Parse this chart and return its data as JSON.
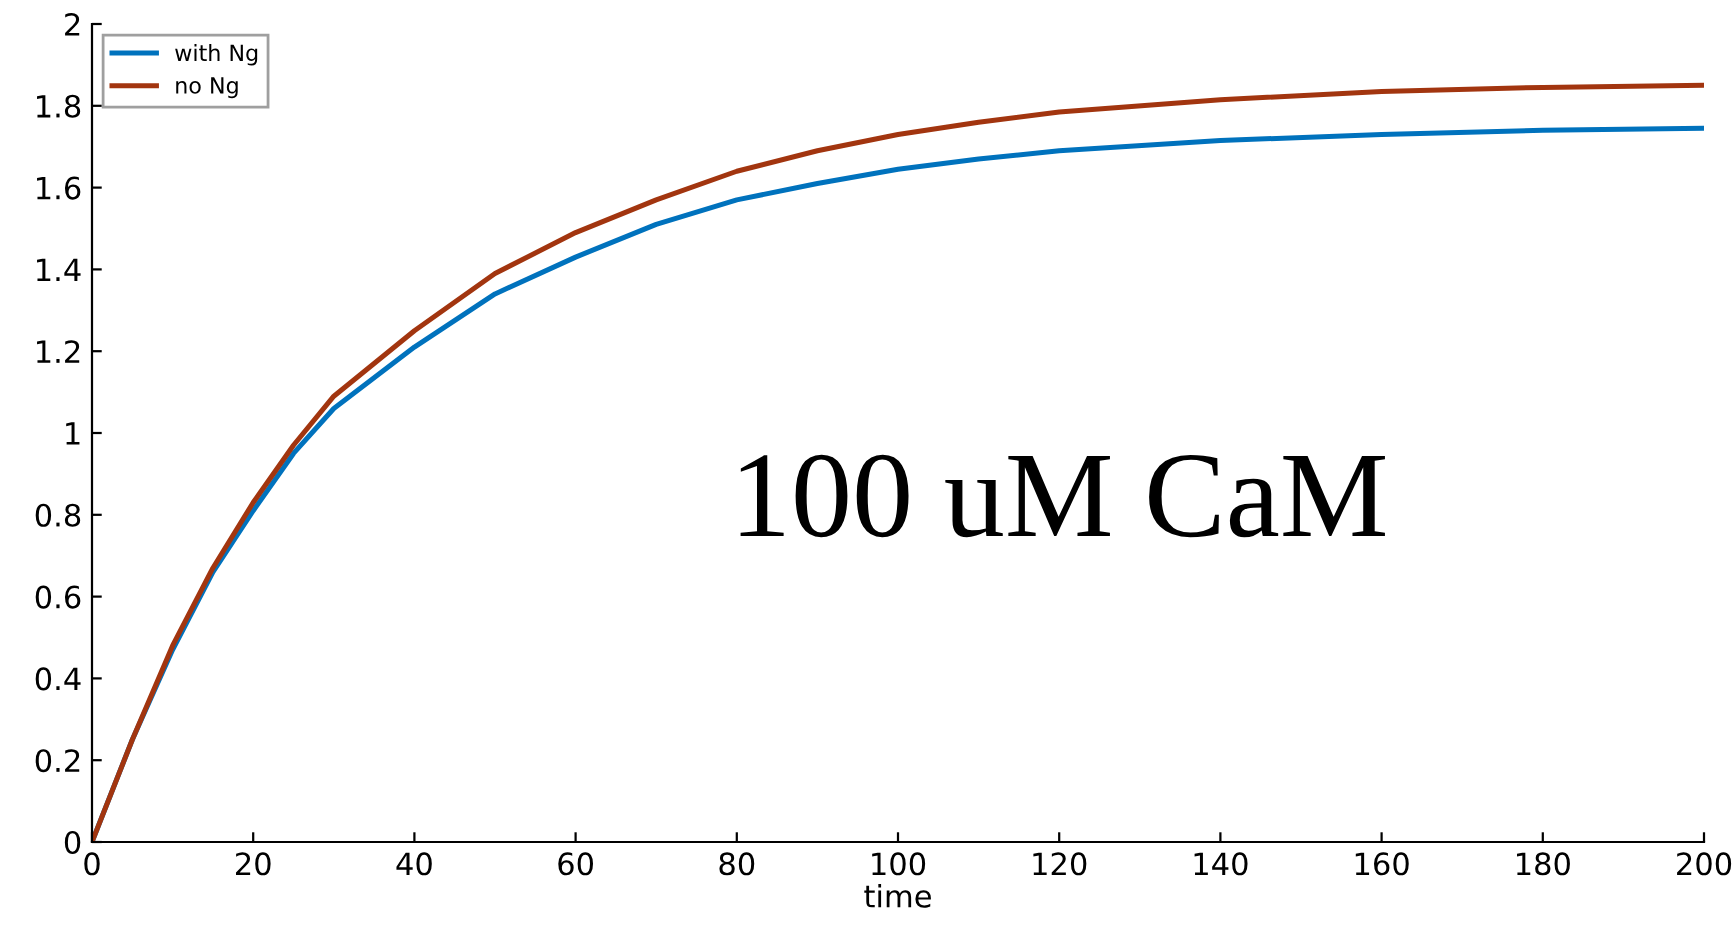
{
  "chart_data": {
    "type": "line",
    "xlabel": "time",
    "x": [
      0,
      5,
      10,
      15,
      20,
      25,
      30,
      40,
      50,
      60,
      70,
      80,
      90,
      100,
      110,
      120,
      140,
      160,
      180,
      200
    ],
    "series": [
      {
        "name": "with Ng",
        "color": "#0072bd",
        "values": [
          0,
          0.25,
          0.47,
          0.66,
          0.81,
          0.95,
          1.06,
          1.21,
          1.34,
          1.43,
          1.51,
          1.57,
          1.61,
          1.645,
          1.67,
          1.69,
          1.715,
          1.73,
          1.74,
          1.745
        ]
      },
      {
        "name": "no Ng",
        "color": "#a2350f",
        "values": [
          0,
          0.25,
          0.48,
          0.67,
          0.83,
          0.97,
          1.09,
          1.25,
          1.39,
          1.49,
          1.57,
          1.64,
          1.69,
          1.73,
          1.76,
          1.785,
          1.815,
          1.835,
          1.845,
          1.85
        ]
      }
    ],
    "annotations": [
      "100 uM CaM"
    ],
    "xlim": [
      0,
      200
    ],
    "ylim": [
      0,
      2
    ],
    "xticks": [
      0,
      20,
      40,
      60,
      80,
      100,
      120,
      140,
      160,
      180,
      200
    ],
    "yticks": [
      0,
      0.2,
      0.4,
      0.6,
      0.8,
      1,
      1.2,
      1.4,
      1.6,
      1.8,
      2
    ],
    "legend": "top left",
    "grid": false,
    "marker": "none",
    "line_style": "solid"
  }
}
